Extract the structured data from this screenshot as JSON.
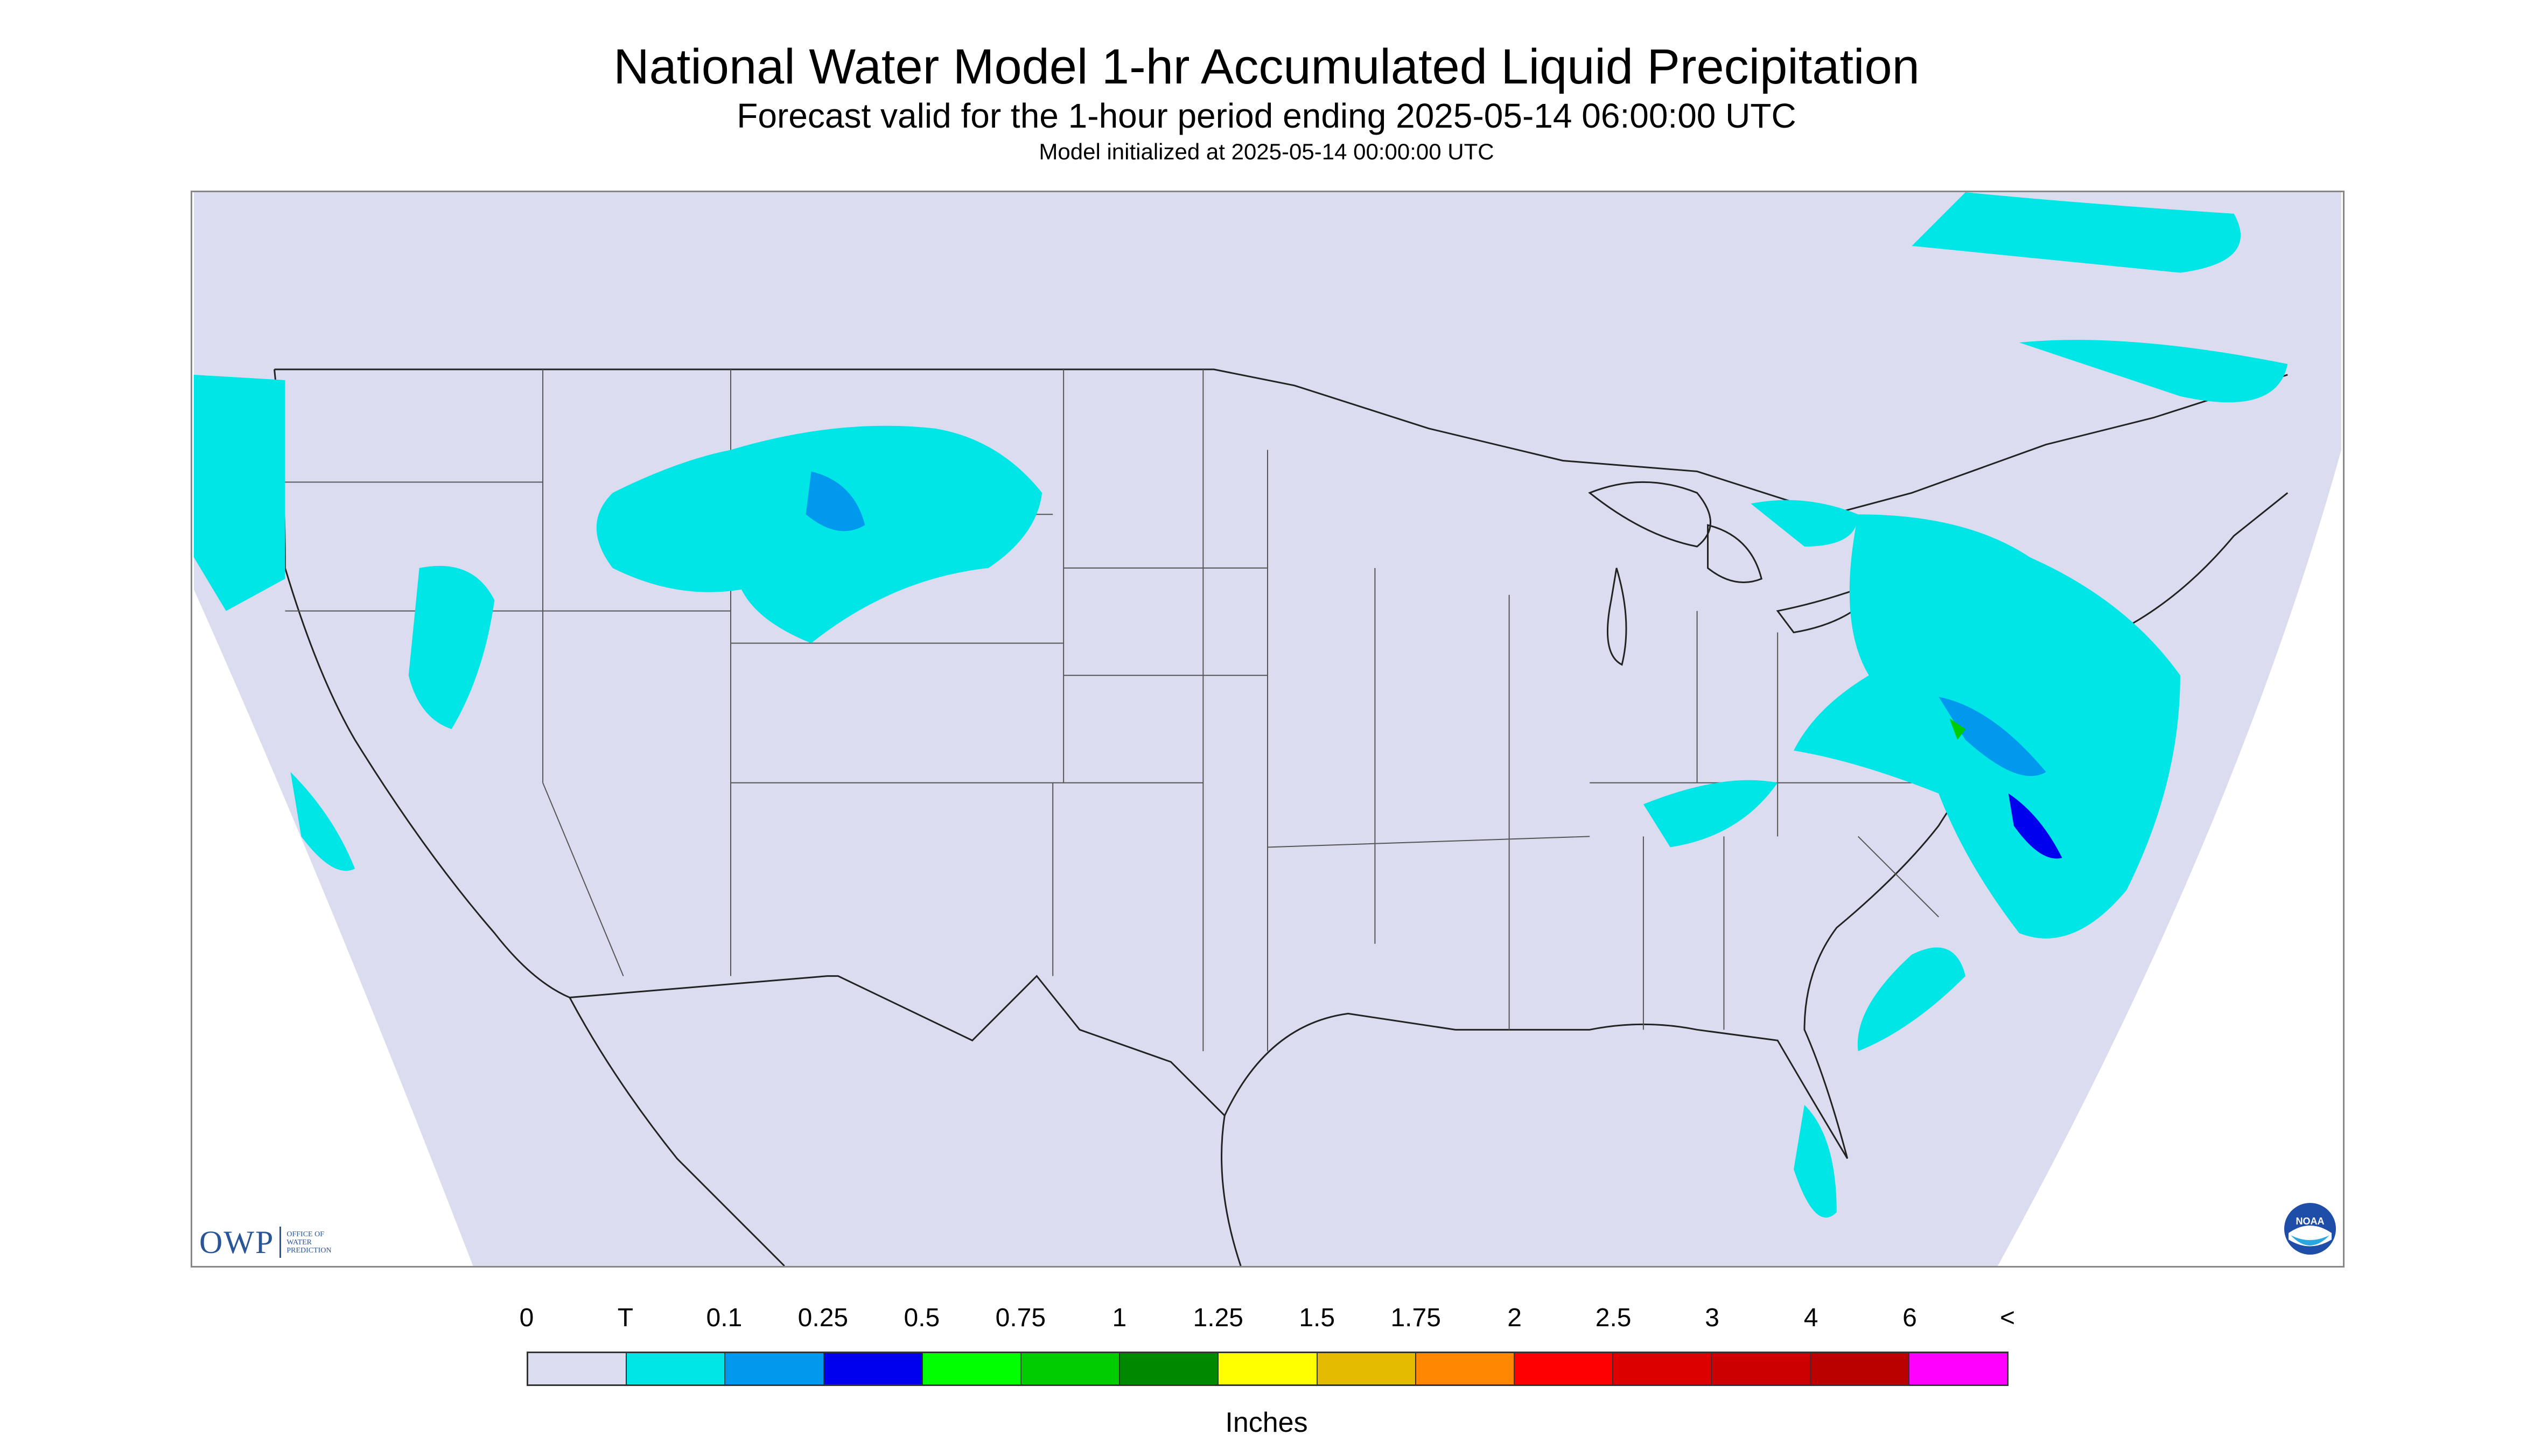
{
  "header": {
    "title": "National Water Model 1-hr Accumulated Liquid Precipitation",
    "subtitle": "Forecast valid for the 1-hour period ending 2025-05-14 06:00:00 UTC",
    "init": "Model initialized at 2025-05-14 00:00:00 UTC"
  },
  "logos": {
    "owp_abbr": "OWP",
    "owp_line1": "OFFICE OF",
    "owp_line2": "WATER",
    "owp_line3": "PREDICTION",
    "noaa": "NOAA"
  },
  "colors": {
    "background": "#dcdcf0",
    "outside": "#ffffff",
    "border": "#333333"
  },
  "legend": {
    "labels": [
      "0",
      "T",
      "0.1",
      "0.25",
      "0.5",
      "0.75",
      "1",
      "1.25",
      "1.5",
      "1.75",
      "2",
      "2.5",
      "3",
      "4",
      "6",
      "<"
    ],
    "colors": [
      "#dcdcf0",
      "#00e5e5",
      "#0099ee",
      "#0000ee",
      "#00ff00",
      "#00cc00",
      "#008800",
      "#ffff00",
      "#e5bb00",
      "#ff8800",
      "#ff0000",
      "#dd0000",
      "#cc0000",
      "#bb0000",
      "#ff00ff",
      "#9955cc"
    ],
    "units": "Inches"
  }
}
